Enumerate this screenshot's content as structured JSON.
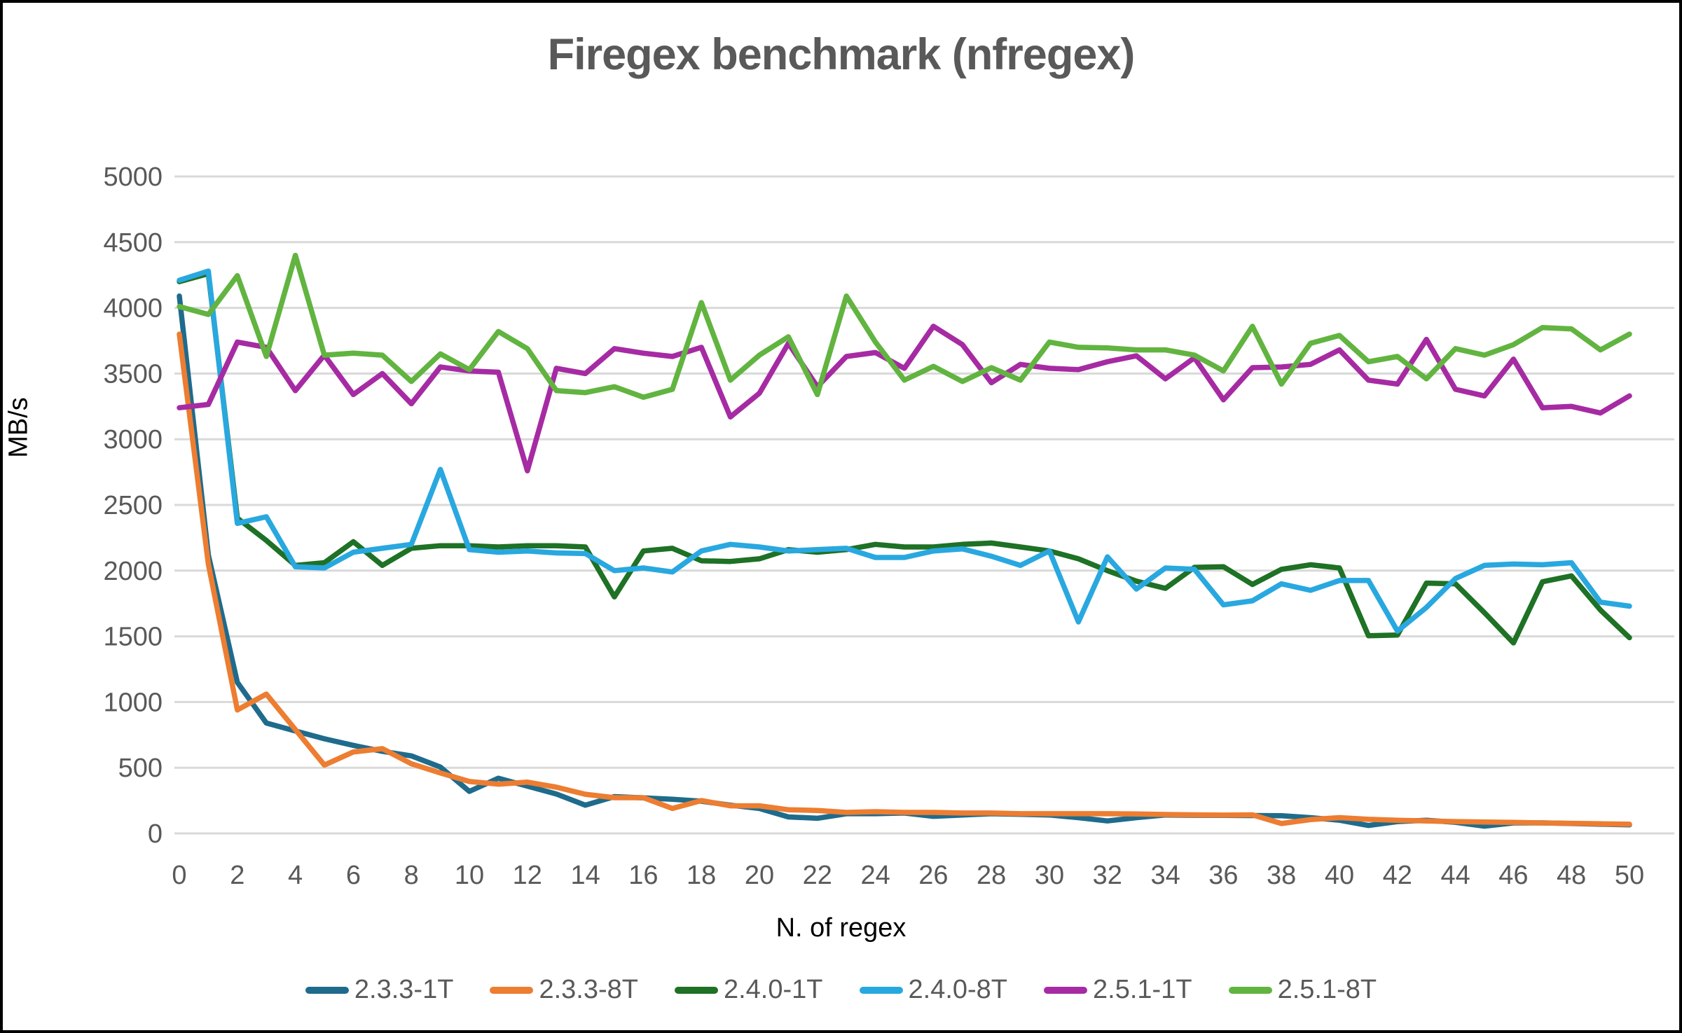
{
  "title": "Firegex benchmark (nfregex)",
  "chart_data": {
    "type": "line",
    "title": "Firegex benchmark (nfregex)",
    "xlabel": "N. of regex",
    "ylabel": "MB/s",
    "xlim": [
      0,
      50
    ],
    "ylim": [
      0,
      5000
    ],
    "grid": "horizontal",
    "legend_position": "bottom",
    "x_ticks": [
      0,
      2,
      4,
      6,
      8,
      10,
      12,
      14,
      16,
      18,
      20,
      22,
      24,
      26,
      28,
      30,
      32,
      34,
      36,
      38,
      40,
      42,
      44,
      46,
      48,
      50
    ],
    "y_ticks": [
      0,
      500,
      1000,
      1500,
      2000,
      2500,
      3000,
      3500,
      4000,
      4500,
      5000
    ],
    "x": [
      0,
      1,
      2,
      3,
      4,
      5,
      6,
      7,
      8,
      9,
      10,
      11,
      12,
      13,
      14,
      15,
      16,
      17,
      18,
      19,
      20,
      21,
      22,
      23,
      24,
      25,
      26,
      27,
      28,
      29,
      30,
      31,
      32,
      33,
      34,
      35,
      36,
      37,
      38,
      39,
      40,
      41,
      42,
      43,
      44,
      45,
      46,
      47,
      48,
      49,
      50
    ],
    "series": [
      {
        "name": "2.3.3-1T",
        "color": "#1F6B8C",
        "values": [
          4090,
          2120,
          1150,
          840,
          780,
          720,
          670,
          625,
          590,
          505,
          320,
          420,
          360,
          300,
          215,
          280,
          270,
          260,
          245,
          215,
          190,
          125,
          115,
          150,
          150,
          155,
          130,
          140,
          150,
          145,
          140,
          120,
          95,
          120,
          140,
          138,
          137,
          136,
          135,
          120,
          100,
          60,
          90,
          100,
          85,
          55,
          80,
          80,
          75,
          70,
          65
        ]
      },
      {
        "name": "2.3.3-8T",
        "color": "#ED7D31",
        "values": [
          3800,
          2050,
          940,
          1060,
          790,
          520,
          620,
          645,
          530,
          460,
          395,
          375,
          390,
          352,
          298,
          272,
          272,
          190,
          250,
          210,
          210,
          180,
          175,
          160,
          165,
          160,
          160,
          155,
          155,
          150,
          150,
          150,
          150,
          148,
          144,
          141,
          139,
          141,
          75,
          105,
          120,
          107,
          100,
          95,
          90,
          87,
          84,
          80,
          77,
          73,
          70
        ]
      },
      {
        "name": "2.4.0-1T",
        "color": "#1E7125",
        "values": [
          4200,
          4260,
          2400,
          2230,
          2040,
          2060,
          2220,
          2040,
          2170,
          2190,
          2190,
          2180,
          2190,
          2190,
          2180,
          1800,
          2150,
          2170,
          2075,
          2070,
          2090,
          2160,
          2140,
          2160,
          2200,
          2180,
          2180,
          2200,
          2210,
          2180,
          2150,
          2090,
          2000,
          1920,
          1865,
          2025,
          2030,
          1895,
          2010,
          2045,
          2020,
          1505,
          1510,
          1905,
          1900,
          1680,
          1450,
          1915,
          1960,
          1700,
          1490
        ]
      },
      {
        "name": "2.4.0-8T",
        "color": "#29A8E0",
        "values": [
          4210,
          4280,
          2360,
          2410,
          2030,
          2020,
          2140,
          2170,
          2200,
          2770,
          2160,
          2140,
          2150,
          2135,
          2130,
          2000,
          2020,
          1990,
          2150,
          2200,
          2180,
          2150,
          2160,
          2170,
          2100,
          2100,
          2150,
          2165,
          2110,
          2040,
          2150,
          1610,
          2105,
          1860,
          2020,
          2010,
          1740,
          1770,
          1900,
          1850,
          1925,
          1925,
          1540,
          1720,
          1940,
          2040,
          2050,
          2045,
          2060,
          1760,
          1730
        ]
      },
      {
        "name": "2.5.1-1T",
        "color": "#A62BA3",
        "values": [
          3240,
          3265,
          3740,
          3700,
          3370,
          3640,
          3340,
          3500,
          3270,
          3550,
          3520,
          3510,
          2760,
          3540,
          3500,
          3690,
          3655,
          3630,
          3700,
          3170,
          3350,
          3730,
          3400,
          3630,
          3660,
          3540,
          3860,
          3720,
          3430,
          3570,
          3540,
          3530,
          3590,
          3635,
          3460,
          3620,
          3300,
          3545,
          3550,
          3570,
          3680,
          3450,
          3420,
          3760,
          3380,
          3330,
          3610,
          3240,
          3250,
          3200,
          3330
        ]
      },
      {
        "name": "2.5.1-8T",
        "color": "#62B440",
        "values": [
          4010,
          3950,
          4245,
          3630,
          4400,
          3640,
          3655,
          3640,
          3440,
          3650,
          3530,
          3820,
          3690,
          3370,
          3355,
          3400,
          3320,
          3380,
          4040,
          3450,
          3640,
          3780,
          3340,
          4090,
          3740,
          3450,
          3555,
          3440,
          3545,
          3450,
          3740,
          3700,
          3695,
          3680,
          3680,
          3640,
          3520,
          3860,
          3420,
          3730,
          3790,
          3590,
          3630,
          3460,
          3690,
          3640,
          3720,
          3850,
          3840,
          3680,
          3800
        ]
      }
    ]
  }
}
